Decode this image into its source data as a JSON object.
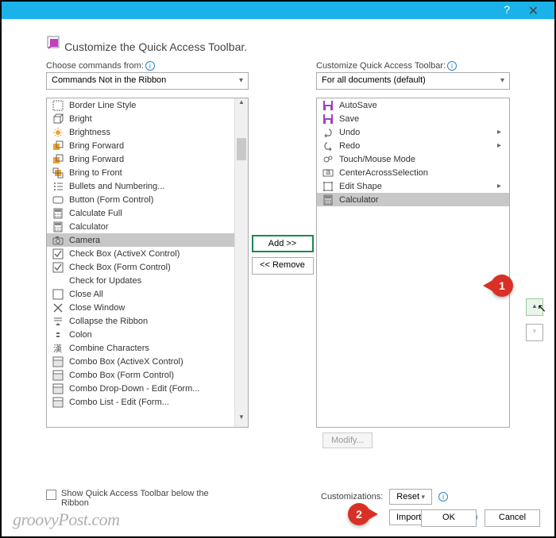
{
  "title": "Customize the Quick Access Toolbar.",
  "choose_label": "Choose commands from:",
  "choose_value": "Commands Not in the Ribbon",
  "customize_label": "Customize Quick Access Toolbar:",
  "customize_value": "For all documents (default)",
  "add_label": "Add >>",
  "remove_label": "<< Remove",
  "modify_label": "Modify...",
  "customizations_label": "Customizations:",
  "reset_label": "Reset",
  "import_label": "Import/Export",
  "show_below_label": "Show Quick Access Toolbar below the Ribbon",
  "ok_label": "OK",
  "cancel_label": "Cancel",
  "watermark": "groovyPost.com",
  "left_items": [
    {
      "icon": "border",
      "label": "Border Line Style",
      "sub": "▸"
    },
    {
      "icon": "cube",
      "label": "Bright"
    },
    {
      "icon": "sun",
      "label": "Brightness",
      "sub": "▸"
    },
    {
      "icon": "fwd",
      "label": "Bring Forward"
    },
    {
      "icon": "fwd",
      "label": "Bring Forward",
      "sub": "|▸"
    },
    {
      "icon": "front",
      "label": "Bring to Front"
    },
    {
      "icon": "bullets",
      "label": "Bullets and Numbering..."
    },
    {
      "icon": "btn",
      "label": "Button (Form Control)"
    },
    {
      "icon": "calc",
      "label": "Calculate Full"
    },
    {
      "icon": "calc",
      "label": "Calculator"
    },
    {
      "icon": "camera",
      "label": "Camera",
      "selected": true
    },
    {
      "icon": "check",
      "label": "Check Box (ActiveX Control)"
    },
    {
      "icon": "check",
      "label": "Check Box (Form Control)"
    },
    {
      "icon": "none",
      "label": "Check for Updates"
    },
    {
      "icon": "close",
      "label": "Close All"
    },
    {
      "icon": "closex",
      "label": "Close Window"
    },
    {
      "icon": "collapse",
      "label": "Collapse the Ribbon"
    },
    {
      "icon": "colon",
      "label": "Colon"
    },
    {
      "icon": "combine",
      "label": "Combine Characters"
    },
    {
      "icon": "combo",
      "label": "Combo Box (ActiveX Control)"
    },
    {
      "icon": "combo",
      "label": "Combo Box (Form Control)"
    },
    {
      "icon": "combo",
      "label": "Combo Drop-Down - Edit (Form..."
    },
    {
      "icon": "combo",
      "label": "Combo List - Edit (Form..."
    }
  ],
  "right_items": [
    {
      "icon": "save",
      "label": "AutoSave"
    },
    {
      "icon": "save",
      "label": "Save"
    },
    {
      "icon": "undo",
      "label": "Undo",
      "sub": "▸"
    },
    {
      "icon": "redo",
      "label": "Redo",
      "sub": "▸"
    },
    {
      "icon": "touch",
      "label": "Touch/Mouse Mode"
    },
    {
      "icon": "center",
      "label": "CenterAcrossSelection"
    },
    {
      "icon": "shape",
      "label": "Edit Shape",
      "sub": "▸"
    },
    {
      "icon": "calc",
      "label": "Calculator",
      "selected": true
    }
  ],
  "marker1": "1",
  "marker2": "2"
}
